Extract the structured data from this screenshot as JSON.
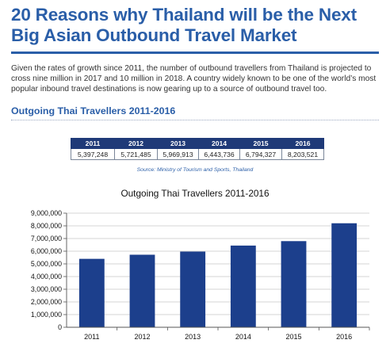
{
  "article": {
    "headline": "20 Reasons why Thailand will be the Next Big Asian Outbound Travel Market",
    "intro": "Given the rates of growth since 2011, the number of outbound travellers from Thailand is projected to cross nine million in 2017 and 10 million in 2018. A country widely known to be one of the world’s most popular inbound travel destinations is now gearing up to a source of outbound travel too.",
    "section_heading": "Outgoing Thai Travellers 2011-2016",
    "source": "Source: Ministry of Tourism and Sports, Thailand",
    "accent_color": "#2a5ea8"
  },
  "table": {
    "headers": [
      "2011",
      "2012",
      "2013",
      "2014",
      "2015",
      "2016"
    ],
    "values": [
      "5,397,248",
      "5,721,485",
      "5,969,913",
      "6,443,736",
      "6,794,327",
      "8,203,521"
    ],
    "header_color": "#1f3a78"
  },
  "chart_data": {
    "type": "bar",
    "title": "Outgoing Thai Travellers 2011-2016",
    "categories": [
      "2011",
      "2012",
      "2013",
      "2014",
      "2015",
      "2016"
    ],
    "values": [
      5397248,
      5721485,
      5969913,
      6443736,
      6794327,
      8203521
    ],
    "ylim": [
      0,
      9000000
    ],
    "y_ticks": [
      "0",
      "1,000,000",
      "2,000,000",
      "3,000,000",
      "4,000,000",
      "5,000,000",
      "6,000,000",
      "7,000,000",
      "8,000,000",
      "9,000,000"
    ],
    "grid": true,
    "legend": "none",
    "bar_color": "#1c3f8c"
  }
}
